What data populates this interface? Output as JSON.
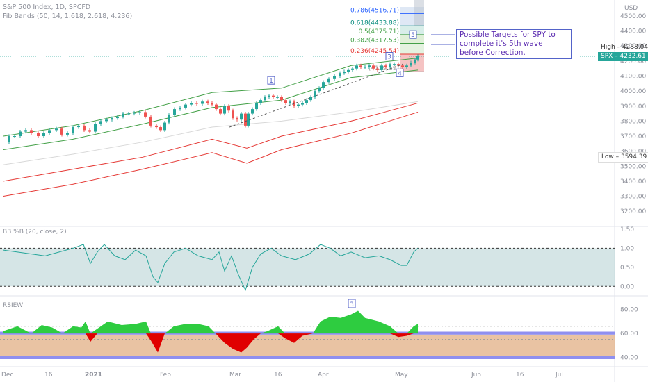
{
  "header": {
    "symbol_line": "S&P 500 Index, 1D, SPCFD",
    "indicator_line": "Fib Bands (50, 14, 1.618, 2.618, 4.236)"
  },
  "annotation": {
    "text": "Possible Targets for SPY to complete it's 5th wave before Correction."
  },
  "price_tags": {
    "high": "High",
    "high_value": "4238.04",
    "symbol": "SPX",
    "symbol_value": "4232.61",
    "low": "Low",
    "low_value": "3594.39"
  },
  "panes": {
    "price": {
      "currency": "USD",
      "ticks": [
        "4500.00",
        "4400.00",
        "4300.00",
        "4200.00",
        "4100.00",
        "4000.00",
        "3900.00",
        "3800.00",
        "3700.00",
        "3600.00",
        "3500.00",
        "3400.00",
        "3300.00",
        "3200.00"
      ]
    },
    "bb": {
      "label": "BB %B (20, close, 2)",
      "ticks": [
        "1.50",
        "1.00",
        "0.50",
        "0.00"
      ]
    },
    "rsi": {
      "label": "RSIEW",
      "ticks": [
        "80.00",
        "60.00",
        "40.00"
      ]
    }
  },
  "x_axis": [
    "Dec",
    "16",
    "2021",
    "Feb",
    "Mar",
    "16",
    "Apr",
    "May",
    "Jun",
    "16",
    "Jul"
  ],
  "waves": [
    "1",
    "3",
    "4",
    "5"
  ],
  "rsi_wave_label": "3",
  "fib_levels": [
    {
      "label": "0.786(4516.71)",
      "value": 4516.71,
      "color": "#2962ff"
    },
    {
      "label": "0.618(4433.88)",
      "value": 4433.88,
      "color": "#00897b"
    },
    {
      "label": "0.5(4375.71)",
      "value": 4375.71,
      "color": "#43a047"
    },
    {
      "label": "0.382(4317.53)",
      "value": 4317.53,
      "color": "#43a047"
    },
    {
      "label": "0.236(4245.54)",
      "value": 4245.54,
      "color": "#e53935"
    },
    {
      "label": "(4129.19)",
      "value": 4129.19,
      "color": "#9e9e9e"
    }
  ],
  "colors": {
    "up_candle": "#26a69a",
    "down_candle": "#ef5350",
    "band_mid": "#43a047",
    "band_upper": "#e53935",
    "note_text": "#5b2bb0",
    "rsi_pos": "#2ecc40",
    "rsi_neg": "#e00000",
    "bb_fill": "#b9d3d6"
  },
  "chart_data": {
    "type": "candlestick",
    "title": "S&P 500 Index, 1D, SPCFD",
    "ylim": [
      3150,
      4560
    ],
    "series": [
      {
        "name": "SPX",
        "points": [
          [
            0,
            3660
          ],
          [
            8,
            3700
          ],
          [
            16,
            3700
          ],
          [
            24,
            3730
          ],
          [
            32,
            3740
          ],
          [
            40,
            3720
          ],
          [
            50,
            3700
          ],
          [
            58,
            3720
          ],
          [
            66,
            3740
          ],
          [
            76,
            3750
          ],
          [
            84,
            3710
          ],
          [
            92,
            3720
          ],
          [
            100,
            3760
          ],
          [
            108,
            3770
          ],
          [
            116,
            3740
          ],
          [
            124,
            3730
          ],
          [
            132,
            3780
          ],
          [
            140,
            3800
          ],
          [
            148,
            3810
          ],
          [
            156,
            3820
          ],
          [
            164,
            3830
          ],
          [
            172,
            3850
          ],
          [
            180,
            3850
          ],
          [
            188,
            3855
          ],
          [
            196,
            3860
          ],
          [
            204,
            3830
          ],
          [
            212,
            3770
          ],
          [
            220,
            3760
          ],
          [
            226,
            3740
          ],
          [
            232,
            3790
          ],
          [
            238,
            3840
          ],
          [
            246,
            3880
          ],
          [
            254,
            3890
          ],
          [
            262,
            3910
          ],
          [
            270,
            3920
          ],
          [
            278,
            3915
          ],
          [
            286,
            3930
          ],
          [
            294,
            3920
          ],
          [
            300,
            3910
          ],
          [
            306,
            3880
          ],
          [
            312,
            3850
          ],
          [
            318,
            3900
          ],
          [
            324,
            3870
          ],
          [
            330,
            3820
          ],
          [
            336,
            3810
          ],
          [
            342,
            3850
          ],
          [
            348,
            3770
          ],
          [
            352,
            3850
          ],
          [
            358,
            3880
          ],
          [
            364,
            3920
          ],
          [
            370,
            3940
          ],
          [
            376,
            3960
          ],
          [
            382,
            3970
          ],
          [
            388,
            3960
          ],
          [
            394,
            3960
          ],
          [
            400,
            3940
          ],
          [
            406,
            3920
          ],
          [
            412,
            3930
          ],
          [
            418,
            3900
          ],
          [
            424,
            3910
          ],
          [
            430,
            3920
          ],
          [
            436,
            3940
          ],
          [
            442,
            3960
          ],
          [
            448,
            4000
          ],
          [
            454,
            4020
          ],
          [
            460,
            4060
          ],
          [
            468,
            4080
          ],
          [
            476,
            4100
          ],
          [
            484,
            4120
          ],
          [
            490,
            4130
          ],
          [
            496,
            4140
          ],
          [
            502,
            4150
          ],
          [
            508,
            4170
          ],
          [
            514,
            4160
          ],
          [
            520,
            4160
          ],
          [
            526,
            4170
          ],
          [
            532,
            4150
          ],
          [
            538,
            4140
          ],
          [
            544,
            4170
          ],
          [
            550,
            4160
          ],
          [
            556,
            4180
          ],
          [
            562,
            4180
          ],
          [
            568,
            4170
          ],
          [
            574,
            4160
          ],
          [
            580,
            4170
          ],
          [
            586,
            4190
          ],
          [
            592,
            4210
          ],
          [
            596,
            4232
          ]
        ]
      }
    ],
    "bands": [
      {
        "name": "basis",
        "color": "#43a047",
        "points": [
          [
            0,
            3610
          ],
          [
            100,
            3680
          ],
          [
            200,
            3780
          ],
          [
            300,
            3890
          ],
          [
            400,
            3940
          ],
          [
            500,
            4090
          ],
          [
            596,
            4140
          ]
        ]
      },
      {
        "name": "upper",
        "color": "#43a047",
        "points": [
          [
            0,
            3700
          ],
          [
            100,
            3770
          ],
          [
            200,
            3870
          ],
          [
            300,
            3990
          ],
          [
            400,
            4020
          ],
          [
            500,
            4170
          ],
          [
            596,
            4220
          ]
        ]
      },
      {
        "name": "inner",
        "color": "#d8d8d8",
        "points": [
          [
            0,
            3510
          ],
          [
            100,
            3580
          ],
          [
            200,
            3660
          ],
          [
            300,
            3760
          ],
          [
            400,
            3800
          ],
          [
            500,
            3860
          ],
          [
            596,
            3930
          ]
        ]
      },
      {
        "name": "low1",
        "color": "#e53935",
        "points": [
          [
            0,
            3400
          ],
          [
            100,
            3480
          ],
          [
            200,
            3560
          ],
          [
            300,
            3680
          ],
          [
            350,
            3620
          ],
          [
            400,
            3700
          ],
          [
            500,
            3800
          ],
          [
            596,
            3920
          ]
        ]
      },
      {
        "name": "low2",
        "color": "#e53935",
        "points": [
          [
            0,
            3300
          ],
          [
            100,
            3380
          ],
          [
            200,
            3480
          ],
          [
            300,
            3590
          ],
          [
            350,
            3520
          ],
          [
            400,
            3610
          ],
          [
            500,
            3720
          ],
          [
            596,
            3860
          ]
        ]
      }
    ],
    "bb_percent_b": [
      [
        0,
        0.95
      ],
      [
        20,
        0.9
      ],
      [
        40,
        0.85
      ],
      [
        60,
        0.8
      ],
      [
        80,
        0.9
      ],
      [
        100,
        1.0
      ],
      [
        115,
        1.1
      ],
      [
        125,
        0.6
      ],
      [
        135,
        0.9
      ],
      [
        145,
        1.1
      ],
      [
        160,
        0.8
      ],
      [
        175,
        0.7
      ],
      [
        190,
        0.95
      ],
      [
        205,
        0.8
      ],
      [
        215,
        0.25
      ],
      [
        222,
        0.1
      ],
      [
        232,
        0.6
      ],
      [
        245,
        0.9
      ],
      [
        262,
        1.0
      ],
      [
        280,
        0.8
      ],
      [
        300,
        0.7
      ],
      [
        310,
        0.9
      ],
      [
        318,
        0.4
      ],
      [
        328,
        0.8
      ],
      [
        338,
        0.3
      ],
      [
        348,
        -0.1
      ],
      [
        358,
        0.5
      ],
      [
        370,
        0.85
      ],
      [
        385,
        1.0
      ],
      [
        400,
        0.8
      ],
      [
        420,
        0.7
      ],
      [
        440,
        0.85
      ],
      [
        456,
        1.1
      ],
      [
        470,
        1.0
      ],
      [
        485,
        0.8
      ],
      [
        500,
        0.9
      ],
      [
        520,
        0.75
      ],
      [
        540,
        0.8
      ],
      [
        556,
        0.7
      ],
      [
        572,
        0.55
      ],
      [
        580,
        0.55
      ],
      [
        590,
        0.9
      ],
      [
        596,
        1.0
      ]
    ],
    "bb_ylim": [
      -0.05,
      1.5
    ],
    "rsiew": [
      [
        0,
        62
      ],
      [
        20,
        66
      ],
      [
        40,
        60
      ],
      [
        55,
        67
      ],
      [
        70,
        65
      ],
      [
        85,
        60
      ],
      [
        100,
        66
      ],
      [
        112,
        65
      ],
      [
        118,
        70
      ],
      [
        125,
        53
      ],
      [
        135,
        64
      ],
      [
        150,
        70
      ],
      [
        170,
        67
      ],
      [
        190,
        68
      ],
      [
        205,
        70
      ],
      [
        212,
        54
      ],
      [
        222,
        44
      ],
      [
        232,
        60
      ],
      [
        245,
        66
      ],
      [
        262,
        68
      ],
      [
        280,
        68
      ],
      [
        295,
        66
      ],
      [
        305,
        60
      ],
      [
        318,
        52
      ],
      [
        330,
        47
      ],
      [
        342,
        44
      ],
      [
        350,
        48
      ],
      [
        360,
        55
      ],
      [
        370,
        60
      ],
      [
        380,
        62
      ],
      [
        395,
        66
      ],
      [
        405,
        56
      ],
      [
        418,
        52
      ],
      [
        430,
        58
      ],
      [
        445,
        60
      ],
      [
        456,
        70
      ],
      [
        470,
        74
      ],
      [
        485,
        73
      ],
      [
        500,
        76
      ],
      [
        510,
        79
      ],
      [
        520,
        73
      ],
      [
        540,
        70
      ],
      [
        556,
        66
      ],
      [
        568,
        57
      ],
      [
        580,
        58
      ],
      [
        590,
        66
      ],
      [
        596,
        68
      ]
    ],
    "rsi_ylim": [
      35,
      88
    ]
  }
}
